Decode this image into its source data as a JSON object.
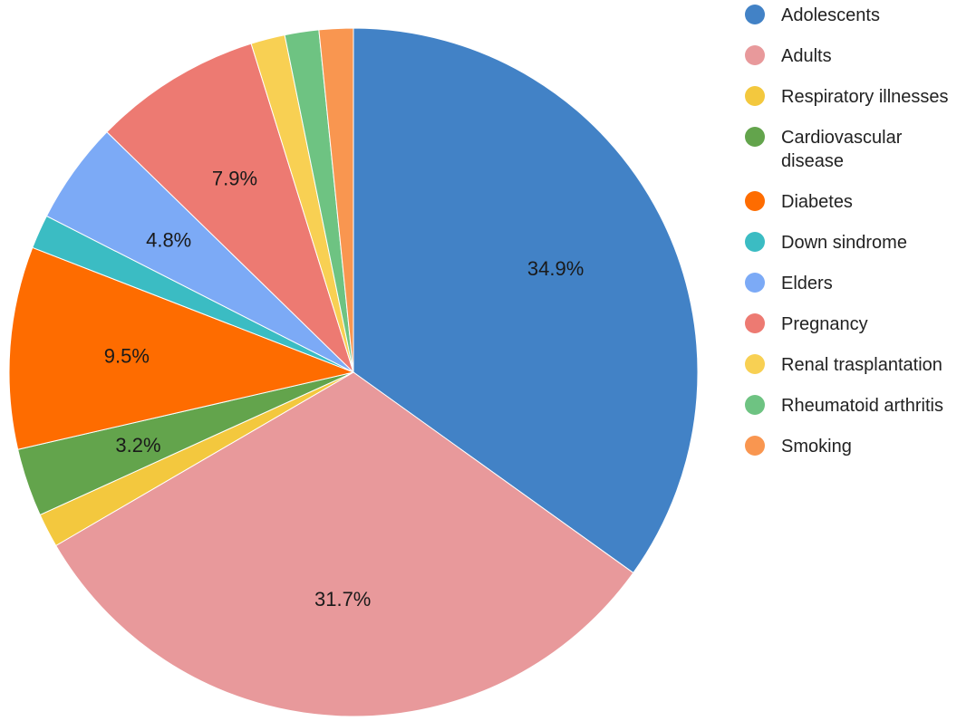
{
  "chart_data": {
    "type": "pie",
    "title": "",
    "legend_position": "right",
    "start": "top, clockwise",
    "slices": [
      {
        "label": "Adolescents",
        "value": 34.9,
        "display": "34.9%",
        "color": "#4282c6"
      },
      {
        "label": "Adults",
        "value": 31.7,
        "display": "31.7%",
        "color": "#e8999b"
      },
      {
        "label": "Respiratory illnesses",
        "value": 1.6,
        "display": "",
        "color": "#f3c83e"
      },
      {
        "label": "Cardiovascular disease",
        "value": 3.2,
        "display": "3.2%",
        "color": "#63a44c"
      },
      {
        "label": "Diabetes",
        "value": 9.5,
        "display": "9.5%",
        "color": "#fe6c00"
      },
      {
        "label": "Down sindrome",
        "value": 1.6,
        "display": "",
        "color": "#3bbcc3"
      },
      {
        "label": "Elders",
        "value": 4.8,
        "display": "4.8%",
        "color": "#7caaf6"
      },
      {
        "label": "Pregnancy",
        "value": 7.9,
        "display": "7.9%",
        "color": "#ed7a72"
      },
      {
        "label": "Renal trasplantation",
        "value": 1.6,
        "display": "",
        "color": "#f8d053"
      },
      {
        "label": "Rheumatoid arthritis",
        "value": 1.6,
        "display": "",
        "color": "#6ec382"
      },
      {
        "label": "Smoking",
        "value": 1.6,
        "display": "",
        "color": "#f99650"
      }
    ]
  },
  "legend": {
    "items": [
      {
        "label": "Adolescents",
        "color": "#4282c6"
      },
      {
        "label": "Adults",
        "color": "#e8999b"
      },
      {
        "label": "Respiratory illnesses",
        "color": "#f3c83e"
      },
      {
        "label": "Cardiovascular\ndisease",
        "color": "#63a44c"
      },
      {
        "label": "Diabetes",
        "color": "#fe6c00"
      },
      {
        "label": "Down sindrome",
        "color": "#3bbcc3"
      },
      {
        "label": "Elders",
        "color": "#7caaf6"
      },
      {
        "label": "Pregnancy",
        "color": "#ed7a72"
      },
      {
        "label": "Renal trasplantation",
        "color": "#f8d053"
      },
      {
        "label": "Rheumatoid arthritis",
        "color": "#6ec382"
      },
      {
        "label": "Smoking",
        "color": "#f99650"
      }
    ]
  }
}
